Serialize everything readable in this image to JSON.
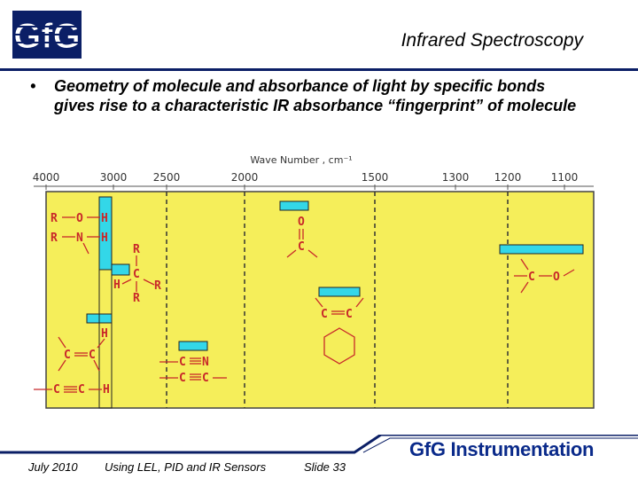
{
  "slide": {
    "logo_text": "GfG",
    "title": "Infrared Spectroscopy",
    "bullet_marker": "•",
    "bullet_text": "Geometry of molecule and absorbance of light by specific bonds gives rise to a characteristic IR absorbance “fingerprint” of molecule",
    "footer_date": "July 2010",
    "footer_topic": "Using LEL, PID and IR Sensors",
    "footer_slide": "Slide 33",
    "brand": "GfG Instrumentation"
  },
  "colors": {
    "chart_bg": "#f5ee5a",
    "band": "#33d7e8",
    "molecule": "#c8282a",
    "navy": "#0b1f66"
  },
  "chart_data": {
    "type": "diagram",
    "xlabel": "Wave Number , cm⁻¹",
    "ticks": [
      "4000",
      "3000",
      "2500",
      "2000",
      "1500",
      "1300",
      "1200",
      "1100"
    ],
    "bands": [
      {
        "label_a": "R",
        "label_b": "O",
        "label_c": "H",
        "group": "O-H"
      },
      {
        "label_a": "R",
        "label_b": "N",
        "label_c": "H",
        "group": "N-H"
      },
      {
        "group": "C-H (alkane)",
        "labels": [
          "R",
          "C",
          "H",
          "R",
          "R"
        ]
      },
      {
        "group": "C-H (alkene)",
        "labels": [
          "H",
          "C",
          "C"
        ]
      },
      {
        "group": "C≡C-H",
        "labels": [
          "C",
          "C",
          "H"
        ]
      },
      {
        "group": "C≡N / C≡C",
        "labels": [
          "C",
          "N",
          "C",
          "C"
        ]
      },
      {
        "group": "C=O",
        "labels": [
          "O",
          "C"
        ]
      },
      {
        "group": "C=C aromatic",
        "labels": [
          "C",
          "C"
        ]
      },
      {
        "group": "C-O",
        "labels": [
          "C",
          "O"
        ]
      }
    ]
  }
}
